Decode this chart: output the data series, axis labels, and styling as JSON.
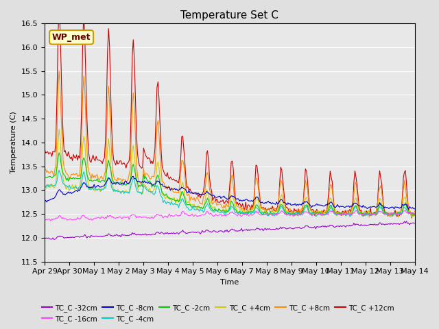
{
  "title": "Temperature Set C",
  "xlabel": "Time",
  "ylabel": "Temperature (C)",
  "ylim": [
    11.5,
    16.5
  ],
  "background_color": "#e0e0e0",
  "plot_bg_color": "#e8e8e8",
  "grid_color": "#ffffff",
  "annotation_text": "WP_met",
  "annotation_bg": "#ffffcc",
  "annotation_border": "#cc9900",
  "series": [
    {
      "label": "TC_C -32cm",
      "color": "#9900cc"
    },
    {
      "label": "TC_C -16cm",
      "color": "#ff44ff"
    },
    {
      "label": "TC_C -8cm",
      "color": "#0000cc"
    },
    {
      "label": "TC_C -4cm",
      "color": "#00cccc"
    },
    {
      "label": "TC_C -2cm",
      "color": "#00cc00"
    },
    {
      "label": "TC_C +4cm",
      "color": "#cccc00"
    },
    {
      "label": "TC_C +8cm",
      "color": "#ff8800"
    },
    {
      "label": "TC_C +12cm",
      "color": "#cc0000"
    }
  ],
  "xtick_labels": [
    "Apr 29",
    "Apr 30",
    "May 1",
    "May 2",
    "May 3",
    "May 4",
    "May 5",
    "May 6",
    "May 7",
    "May 8",
    "May 9",
    "May 10",
    "May 11",
    "May 12",
    "May 13",
    "May 14"
  ]
}
